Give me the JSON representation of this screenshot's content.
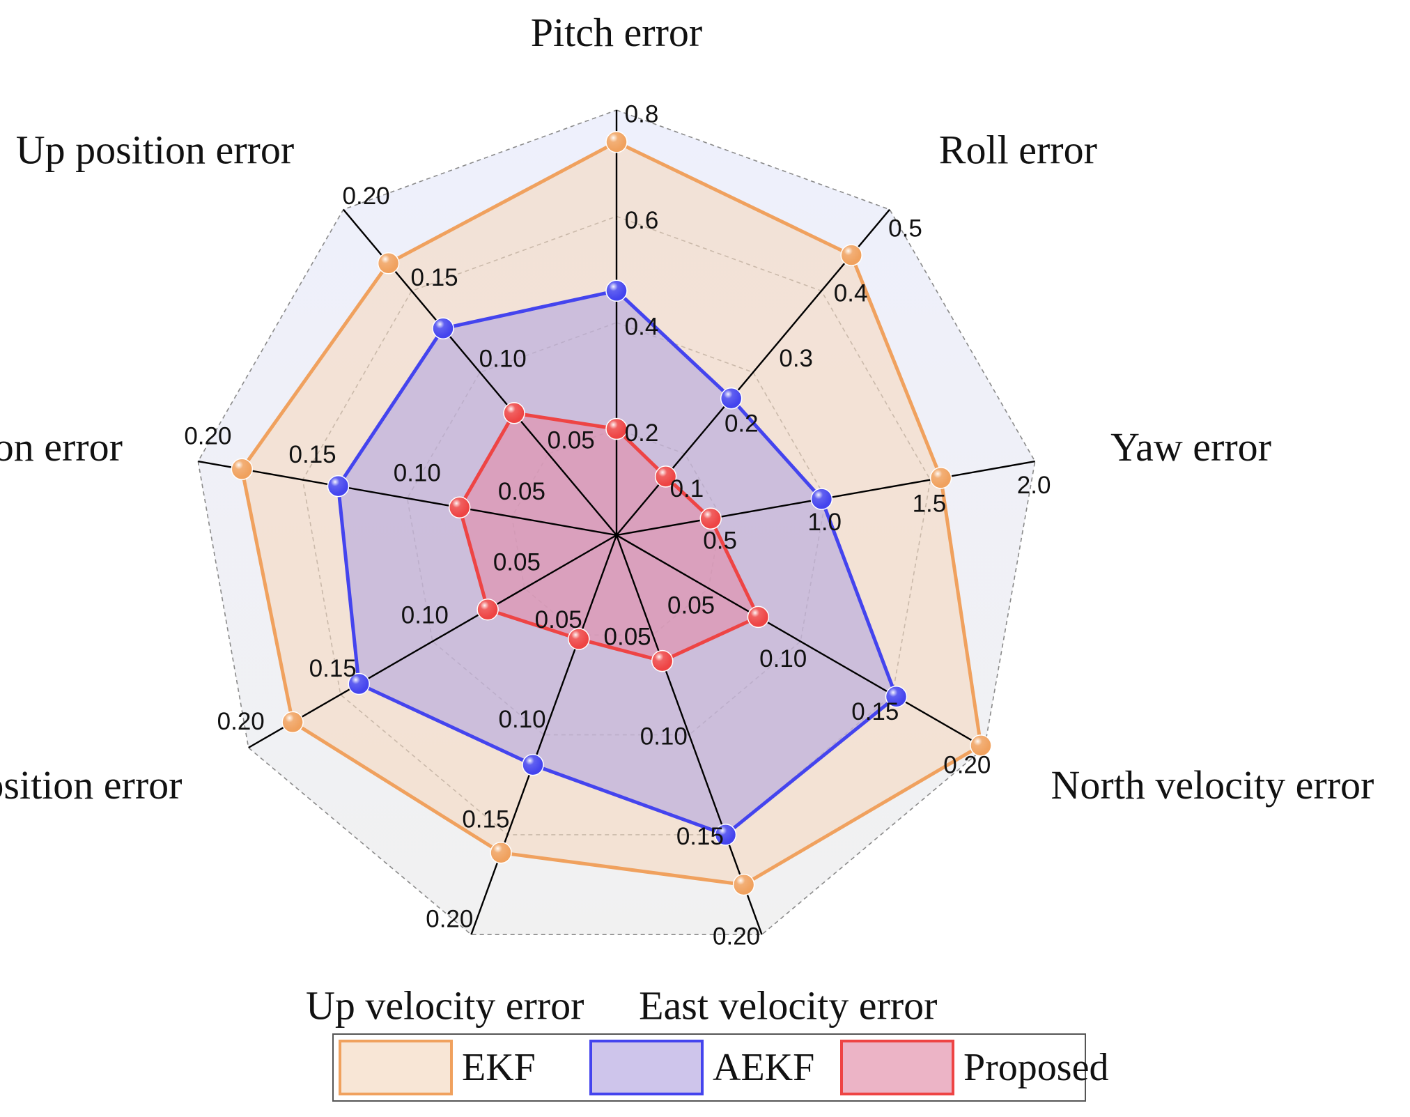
{
  "chart_data": {
    "type": "radar",
    "axes": [
      {
        "label": "Pitch error",
        "max": 0.8,
        "ticks": [
          "0.2",
          "0.4",
          "0.6",
          "0.8"
        ]
      },
      {
        "label": "Roll error",
        "max": 0.5,
        "ticks": [
          "0.1",
          "0.2",
          "0.3",
          "0.4",
          "0.5"
        ]
      },
      {
        "label": "Yaw error",
        "max": 2.0,
        "ticks": [
          "0.5",
          "1.0",
          "1.5",
          "2.0"
        ]
      },
      {
        "label": "North velocity error",
        "max": 0.2,
        "ticks": [
          "0.05",
          "0.10",
          "0.15",
          "0.20"
        ]
      },
      {
        "label": "East velocity error",
        "max": 0.2,
        "ticks": [
          "0.05",
          "0.10",
          "0.15",
          "0.20"
        ]
      },
      {
        "label": "Up velocity error",
        "max": 0.2,
        "ticks": [
          "0.05",
          "0.10",
          "0.15",
          "0.20"
        ]
      },
      {
        "label": "North position error",
        "max": 0.2,
        "ticks": [
          "0.05",
          "0.10",
          "0.15",
          "0.20"
        ]
      },
      {
        "label": "East position error",
        "max": 0.2,
        "ticks": [
          "0.05",
          "0.10",
          "0.15",
          "0.20"
        ]
      },
      {
        "label": "Up position error",
        "max": 0.2,
        "ticks": [
          "0.05",
          "0.10",
          "0.15",
          "0.20"
        ]
      }
    ],
    "series": [
      {
        "name": "EKF",
        "color": "#f0a15e",
        "fill": "#f5d9c0",
        "values": [
          0.74,
          0.43,
          1.55,
          0.198,
          0.175,
          0.159,
          0.176,
          0.179,
          0.167
        ]
      },
      {
        "name": "AEKF",
        "color": "#4444ee",
        "fill": "#b3a6e0",
        "values": [
          0.46,
          0.21,
          0.98,
          0.152,
          0.15,
          0.115,
          0.14,
          0.133,
          0.127
        ]
      },
      {
        "name": "Proposed",
        "color": "#ee4444",
        "fill": "#e28ca8",
        "values": [
          0.2,
          0.09,
          0.45,
          0.077,
          0.063,
          0.052,
          0.07,
          0.075,
          0.075
        ]
      }
    ],
    "legend": {
      "position": "bottom-center"
    },
    "grid": true
  }
}
